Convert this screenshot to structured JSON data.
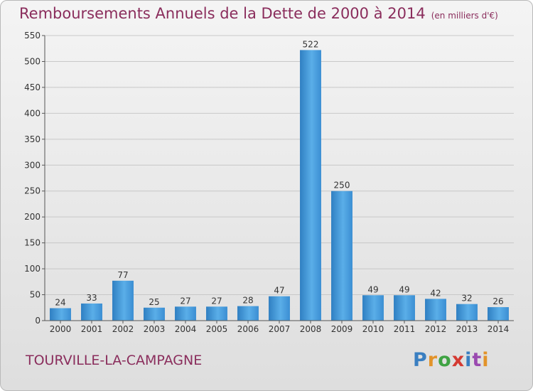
{
  "header": {
    "title": "Remboursements Annuels de la Dette de 2000 à 2014",
    "unit": "(en milliers d'€)"
  },
  "footer": {
    "city": "TOURVILLE-LA-CAMPAGNE",
    "logo": [
      "P",
      "r",
      "o",
      "x",
      "i",
      "t",
      "i"
    ]
  },
  "chart_data": {
    "type": "bar",
    "title": "Remboursements Annuels de la Dette de 2000 à 2014",
    "subtitle": "(en milliers d'€)",
    "categories": [
      "2000",
      "2001",
      "2002",
      "2003",
      "2004",
      "2005",
      "2006",
      "2007",
      "2008",
      "2009",
      "2010",
      "2011",
      "2012",
      "2013",
      "2014"
    ],
    "values": [
      24,
      33,
      77,
      25,
      27,
      27,
      28,
      47,
      522,
      250,
      49,
      49,
      42,
      32,
      26
    ],
    "ylim": [
      0,
      550
    ],
    "yticks": [
      0,
      50,
      100,
      150,
      200,
      250,
      300,
      350,
      400,
      450,
      500,
      550
    ],
    "grid": true,
    "bar_color": "#3f93d6"
  }
}
